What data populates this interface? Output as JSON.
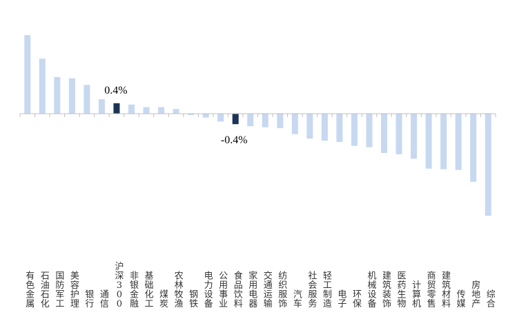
{
  "chart_data": {
    "type": "bar",
    "categories": [
      "有色金属",
      "石油石化",
      "国防军工",
      "美容护理",
      "银行",
      "通信",
      "沪深300",
      "非银金融",
      "基础化工",
      "煤炭",
      "农林牧渔",
      "钢铁",
      "电力设备",
      "公用事业",
      "食品饮料",
      "家用电器",
      "交通运输",
      "纺织服饰",
      "汽车",
      "社会服务",
      "轻工制造",
      "电子",
      "环保",
      "机械设备",
      "建筑装饰",
      "医药生物",
      "计算机",
      "商贸零售",
      "建筑材料",
      "传媒",
      "房地产",
      "综合"
    ],
    "values": [
      3.0,
      2.1,
      1.4,
      1.35,
      1.1,
      0.55,
      0.4,
      0.35,
      0.25,
      0.25,
      0.18,
      -0.05,
      -0.15,
      -0.3,
      -0.4,
      -0.48,
      -0.52,
      -0.55,
      -0.78,
      -0.95,
      -1.03,
      -1.08,
      -1.23,
      -1.28,
      -1.5,
      -1.55,
      -1.72,
      -2.1,
      -2.12,
      -2.15,
      -2.6,
      -3.9
    ],
    "highlight": [
      "沪深300",
      "食品饮料"
    ],
    "data_labels": [
      {
        "category": "沪深300",
        "text": "0.4%"
      },
      {
        "category": "食品饮料",
        "text": "-0.4%"
      }
    ],
    "ylim": [
      -4.2,
      3.3
    ],
    "grid": false,
    "legend": "none",
    "colors": {
      "default": "#c7d8f0",
      "highlight": "#1a3356",
      "axis": "#bfbfbf"
    }
  }
}
